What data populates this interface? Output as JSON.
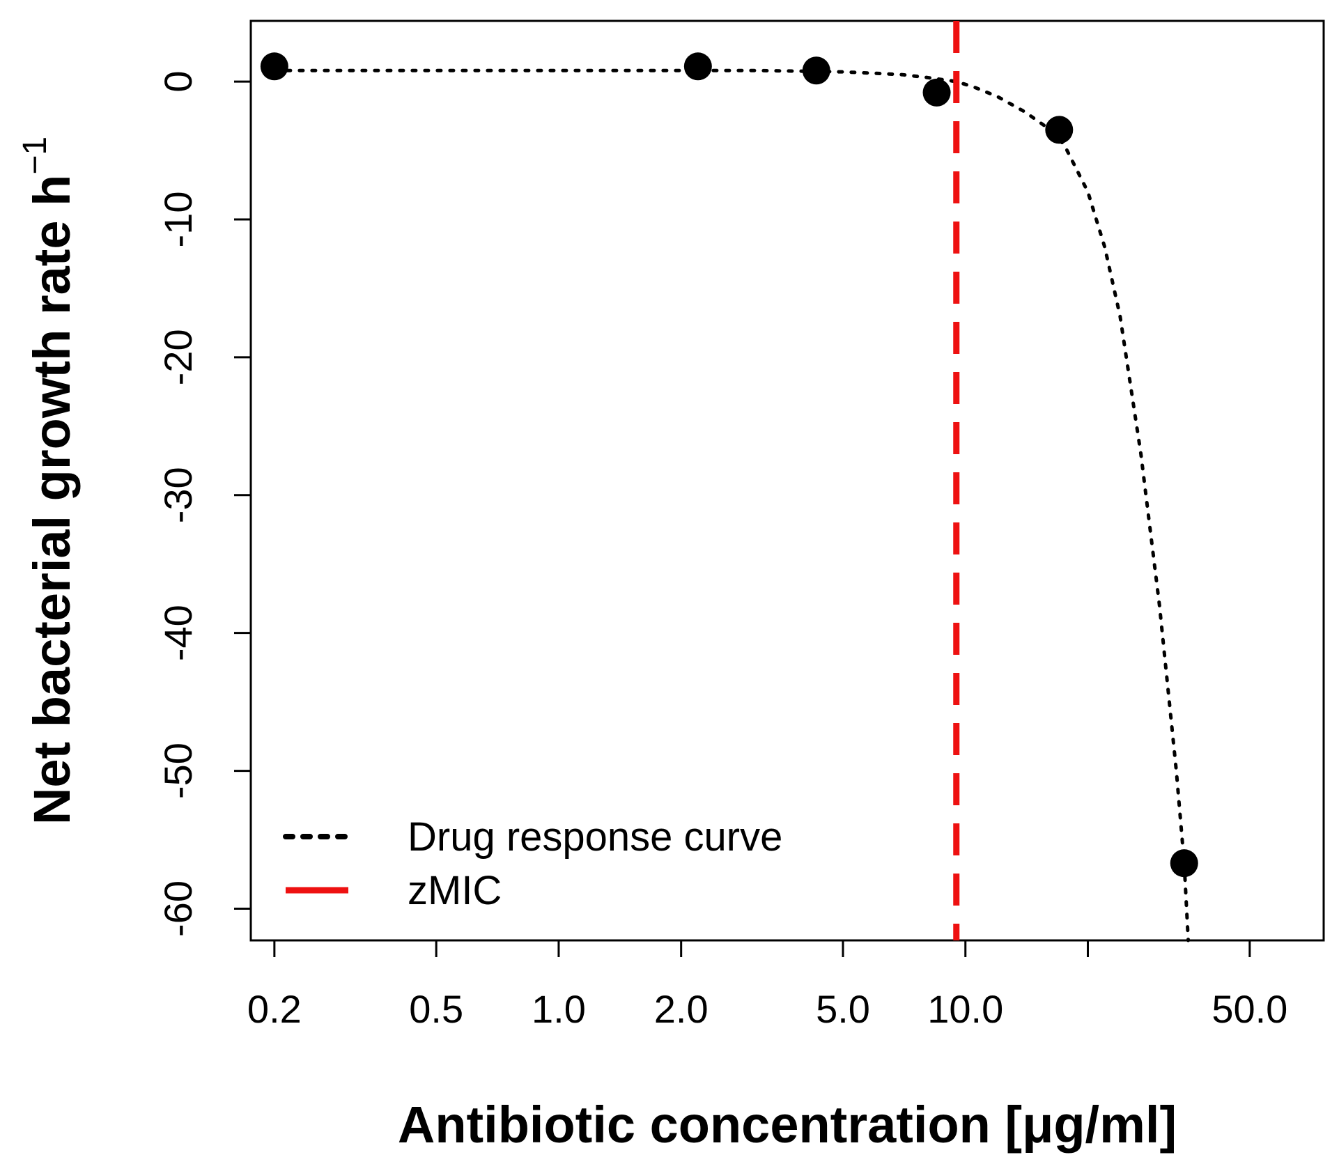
{
  "chart_data": {
    "type": "scatter",
    "title": "",
    "xlabel": "Antibiotic concentration [μg/ml]",
    "ylabel": "Net bacterial growth rate h",
    "ylabel_superscript": "−1",
    "x_scale": "log",
    "xlim": [
      0.175,
      76
    ],
    "ylim": [
      -62.3,
      4.4
    ],
    "x_ticks": [
      {
        "value": 0.2,
        "label": "0.2"
      },
      {
        "value": 0.5,
        "label": "0.5"
      },
      {
        "value": 1.0,
        "label": "1.0"
      },
      {
        "value": 2.0,
        "label": "2.0"
      },
      {
        "value": 5.0,
        "label": "5.0"
      },
      {
        "value": 10.0,
        "label": "10.0"
      },
      {
        "value": 20.0,
        "label": ""
      },
      {
        "value": 50.0,
        "label": "50.0"
      }
    ],
    "y_ticks": [
      {
        "value": 0,
        "label": "0"
      },
      {
        "value": -10,
        "label": "-10"
      },
      {
        "value": -20,
        "label": "-20"
      },
      {
        "value": -30,
        "label": "-30"
      },
      {
        "value": -40,
        "label": "-40"
      },
      {
        "value": -50,
        "label": "-50"
      },
      {
        "value": -60,
        "label": "-60"
      }
    ],
    "points": [
      {
        "x": 0.2,
        "y": 1.1
      },
      {
        "x": 2.2,
        "y": 1.1
      },
      {
        "x": 4.3,
        "y": 0.8
      },
      {
        "x": 8.5,
        "y": -0.8
      },
      {
        "x": 17.0,
        "y": -3.5
      },
      {
        "x": 34.5,
        "y": -56.7
      }
    ],
    "curve": {
      "name": "Drug response curve",
      "color": "#000000",
      "style": "dotted",
      "x": [
        0.2,
        0.5,
        1.0,
        2.0,
        3.0,
        4.0,
        5.0,
        6.0,
        7.0,
        8.0,
        9.0,
        9.5,
        10.5,
        12.0,
        14.0,
        16.0,
        17.5,
        20.0,
        22.0,
        24.0,
        27.0,
        30.0,
        33.0,
        34.5,
        35.3
      ],
      "y": [
        0.8,
        0.8,
        0.8,
        0.8,
        0.8,
        0.75,
        0.7,
        0.6,
        0.5,
        0.3,
        0.1,
        0.0,
        -0.4,
        -1.1,
        -2.2,
        -3.4,
        -4.6,
        -8.0,
        -12.0,
        -17.0,
        -27.0,
        -38.0,
        -50.0,
        -56.7,
        -62.3
      ]
    },
    "vline": {
      "name": "zMIC",
      "x": 9.5,
      "color": "#ee1111",
      "style": "dashed"
    },
    "legend": {
      "position": "bottom-left",
      "entries": [
        {
          "label": "Drug response curve",
          "style": "dotted",
          "color": "#000000"
        },
        {
          "label": "zMIC",
          "style": "dashed",
          "color": "#ee1111"
        }
      ]
    }
  }
}
